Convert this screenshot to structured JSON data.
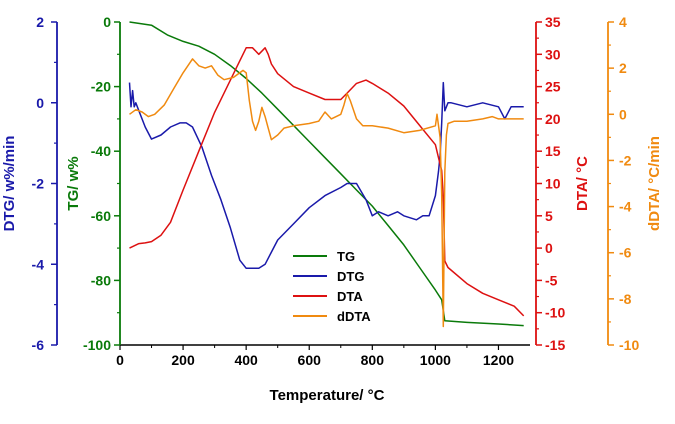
{
  "chart_data": {
    "type": "line",
    "xlabel": "Temperature/ °C",
    "xlim": [
      0,
      1300
    ],
    "xticks": [
      "0",
      "200",
      "400",
      "600",
      "800",
      "1000",
      "1200"
    ],
    "xtick_values": [
      0,
      200,
      400,
      600,
      800,
      1000,
      1200
    ],
    "axes": {
      "dtg": {
        "label": "DTG/ w%/min",
        "range": [
          -6,
          2
        ],
        "ticks": [
          "2",
          "0",
          "-2",
          "-4",
          "-6"
        ],
        "tick_values": [
          2,
          0,
          -2,
          -4,
          -6
        ],
        "color": "#1a1aaa"
      },
      "tg": {
        "label": "TG/ w%",
        "range": [
          -100,
          0
        ],
        "ticks": [
          "0",
          "-20",
          "-40",
          "-60",
          "-80",
          "-100"
        ],
        "tick_values": [
          0,
          -20,
          -40,
          -60,
          -80,
          -100
        ],
        "color": "#0a7a0a"
      },
      "dta": {
        "label": "DTA/ °C",
        "range": [
          -15,
          35
        ],
        "ticks": [
          "35",
          "30",
          "25",
          "20",
          "15",
          "10",
          "5",
          "0",
          "-5",
          "-10",
          "-15"
        ],
        "tick_values": [
          35,
          30,
          25,
          20,
          15,
          10,
          5,
          0,
          -5,
          -10,
          -15
        ],
        "color": "#dd1111"
      },
      "ddta": {
        "label": "dDTA/ °C/min",
        "range": [
          -10,
          4
        ],
        "ticks": [
          "4",
          "2",
          "0",
          "-2",
          "-4",
          "-6",
          "-8",
          "-10"
        ],
        "tick_values": [
          4,
          2,
          0,
          -2,
          -4,
          -6,
          -8,
          -10
        ],
        "color": "#f08a10"
      }
    },
    "legend_position": "center",
    "series": [
      {
        "name": "TG",
        "axis": "tg",
        "color": "#0a7a0a",
        "x": [
          30,
          100,
          150,
          200,
          250,
          300,
          350,
          400,
          450,
          500,
          550,
          600,
          650,
          700,
          750,
          800,
          850,
          900,
          950,
          1000,
          1020,
          1030,
          1100,
          1200,
          1280
        ],
        "y": [
          0,
          -1,
          -4,
          -6,
          -7.5,
          -10,
          -13.5,
          -17.5,
          -22,
          -27,
          -32,
          -37,
          -42,
          -47,
          -52,
          -57,
          -63,
          -69,
          -76,
          -83,
          -86,
          -92.5,
          -93,
          -93.5,
          -94
        ]
      },
      {
        "name": "DTG",
        "axis": "dtg",
        "color": "#1a1aaa",
        "x": [
          30,
          35,
          40,
          45,
          50,
          60,
          80,
          100,
          130,
          160,
          190,
          210,
          230,
          260,
          290,
          320,
          350,
          380,
          400,
          420,
          440,
          460,
          480,
          500,
          550,
          600,
          650,
          700,
          720,
          750,
          780,
          800,
          820,
          850,
          880,
          900,
          940,
          960,
          980,
          1000,
          1010,
          1015,
          1020,
          1025,
          1030,
          1035,
          1040,
          1050,
          1100,
          1150,
          1200,
          1220,
          1240,
          1260,
          1280
        ],
        "y": [
          0.5,
          -0.1,
          0.3,
          -0.1,
          0.0,
          -0.2,
          -0.6,
          -0.9,
          -0.8,
          -0.6,
          -0.5,
          -0.5,
          -0.6,
          -1.1,
          -1.8,
          -2.4,
          -3.1,
          -3.9,
          -4.1,
          -4.1,
          -4.1,
          -4.0,
          -3.7,
          -3.4,
          -3.0,
          -2.6,
          -2.3,
          -2.1,
          -2.0,
          -2.0,
          -2.4,
          -2.8,
          -2.7,
          -2.8,
          -2.7,
          -2.8,
          -2.9,
          -2.8,
          -2.8,
          -2.3,
          -1.7,
          -1.3,
          -0.5,
          0.5,
          -0.2,
          -0.1,
          0.0,
          0.0,
          -0.1,
          0.0,
          -0.1,
          -0.4,
          -0.1,
          -0.1,
          -0.1
        ]
      },
      {
        "name": "DTA",
        "axis": "dta",
        "color": "#dd1111",
        "x": [
          30,
          60,
          80,
          100,
          130,
          160,
          200,
          250,
          300,
          350,
          380,
          400,
          420,
          440,
          460,
          470,
          480,
          500,
          550,
          600,
          650,
          700,
          720,
          750,
          780,
          800,
          850,
          900,
          950,
          1000,
          1010,
          1020,
          1025,
          1030,
          1040,
          1100,
          1150,
          1200,
          1250,
          1280
        ],
        "y": [
          0,
          0.7,
          0.8,
          1,
          2,
          4,
          9,
          15,
          21,
          26,
          29,
          31,
          31,
          30,
          31,
          30,
          28.5,
          27,
          25,
          24,
          23,
          23,
          24,
          25.5,
          26,
          25.5,
          24,
          22,
          19,
          16,
          14,
          12,
          8,
          -2,
          -3,
          -5.5,
          -7,
          -8,
          -9,
          -10.5
        ]
      },
      {
        "name": "dDTA",
        "axis": "ddta",
        "color": "#f08a10",
        "x": [
          30,
          50,
          70,
          90,
          110,
          140,
          170,
          200,
          230,
          250,
          270,
          290,
          310,
          330,
          360,
          390,
          400,
          410,
          420,
          430,
          440,
          450,
          460,
          470,
          480,
          500,
          520,
          550,
          600,
          630,
          650,
          670,
          700,
          710,
          720,
          730,
          740,
          750,
          770,
          800,
          850,
          900,
          950,
          1000,
          1005,
          1015,
          1020,
          1025,
          1030,
          1035,
          1040,
          1060,
          1100,
          1150,
          1180,
          1200,
          1250,
          1280
        ],
        "y": [
          0,
          0.2,
          0.1,
          -0.1,
          0,
          0.4,
          1.1,
          1.8,
          2.4,
          2.1,
          2.0,
          2.1,
          1.7,
          1.5,
          1.6,
          1.9,
          1.8,
          0.6,
          -0.3,
          -0.7,
          -0.3,
          0.3,
          -0.1,
          -0.6,
          -1.1,
          -0.9,
          -0.6,
          -0.5,
          -0.4,
          -0.3,
          0.1,
          -0.2,
          0.0,
          0.4,
          0.9,
          0.6,
          0.2,
          -0.2,
          -0.5,
          -0.5,
          -0.6,
          -0.8,
          -0.7,
          -0.5,
          0.0,
          -1.0,
          -3.5,
          -9.2,
          -2.5,
          -0.9,
          -0.4,
          -0.3,
          -0.3,
          -0.2,
          -0.1,
          -0.2,
          -0.2,
          -0.2
        ]
      }
    ]
  }
}
